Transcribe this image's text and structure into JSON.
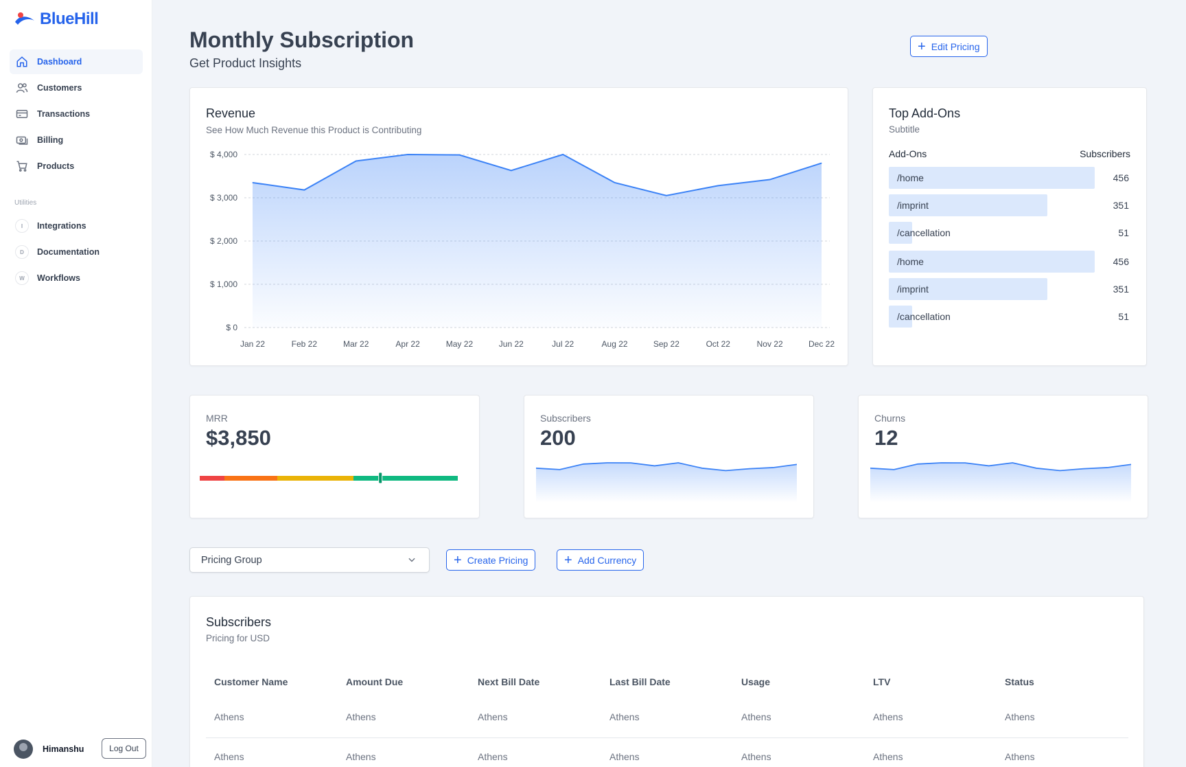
{
  "app": {
    "name": "BlueHill"
  },
  "sidebar": {
    "items": [
      {
        "label": "Dashboard",
        "icon": "home-icon",
        "active": true
      },
      {
        "label": "Customers",
        "icon": "users-icon"
      },
      {
        "label": "Transactions",
        "icon": "credit-card-icon"
      },
      {
        "label": "Billing",
        "icon": "cash-icon"
      },
      {
        "label": "Products",
        "icon": "cart-icon"
      }
    ],
    "utilities_label": "Utilities",
    "utilities": [
      {
        "label": "Integrations",
        "badge": "I"
      },
      {
        "label": "Documentation",
        "badge": "D"
      },
      {
        "label": "Workflows",
        "badge": "W"
      }
    ],
    "user": {
      "name": "Himanshu",
      "logout_label": "Log Out"
    }
  },
  "header": {
    "title": "Monthly Subscription",
    "subtitle": "Get Product Insights",
    "edit_pricing_label": "Edit Pricing"
  },
  "revenue": {
    "title": "Revenue",
    "subtitle": "See How Much Revenue this Product is Contributing"
  },
  "chart_data": {
    "type": "area",
    "title": "Revenue",
    "subtitle": "See How Much Revenue this Product is Contributing",
    "categories": [
      "Jan 22",
      "Feb 22",
      "Mar 22",
      "Apr 22",
      "May 22",
      "Jun 22",
      "Jul 22",
      "Aug 22",
      "Sep 22",
      "Oct 22",
      "Nov 22",
      "Dec 22"
    ],
    "values": [
      3350,
      3180,
      3850,
      4000,
      3990,
      3630,
      4000,
      3350,
      3050,
      3280,
      3420,
      3800
    ],
    "ylim": [
      0,
      4000
    ],
    "yticks": [
      0,
      1000,
      2000,
      3000,
      4000
    ],
    "ytick_labels": [
      "$ 0",
      "$ 1,000",
      "$ 2,000",
      "$ 3,000",
      "$ 4,000"
    ],
    "grid": true,
    "color": "#3b82f6"
  },
  "addons": {
    "title": "Top Add-Ons",
    "subtitle": "Subtitle",
    "col_name": "Add-Ons",
    "col_value": "Subscribers",
    "max": 456,
    "rows": [
      {
        "name": "/home",
        "value": 456
      },
      {
        "name": "/imprint",
        "value": 351
      },
      {
        "name": "/cancellation",
        "value": 51
      },
      {
        "name": "/home",
        "value": 456
      },
      {
        "name": "/imprint",
        "value": 351
      },
      {
        "name": "/cancellation",
        "value": 51
      }
    ]
  },
  "kpis": {
    "mrr": {
      "label": "MRR",
      "value": "$3,850",
      "marker_fraction": 0.7
    },
    "subscribers": {
      "label": "Subscribers",
      "value": "200"
    },
    "churns": {
      "label": "Churns",
      "value": "12"
    }
  },
  "controls": {
    "pricing_group_placeholder": "Pricing Group",
    "create_pricing_label": "Create Pricing",
    "add_currency_label": "Add Currency"
  },
  "table": {
    "title": "Subscribers",
    "subtitle": "Pricing for USD",
    "columns": [
      "Customer Name",
      "Amount Due",
      "Next Bill Date",
      "Last Bill Date",
      "Usage",
      "LTV",
      "Status"
    ],
    "rows": [
      [
        "Athens",
        "Athens",
        "Athens",
        "Athens",
        "Athens",
        "Athens",
        "Athens"
      ],
      [
        "Athens",
        "Athens",
        "Athens",
        "Athens",
        "Athens",
        "Athens",
        "Athens"
      ]
    ]
  },
  "colors": {
    "accent": "#2563eb",
    "bar_fill": "#dbe8fc",
    "page_bg": "#f1f4f9"
  }
}
